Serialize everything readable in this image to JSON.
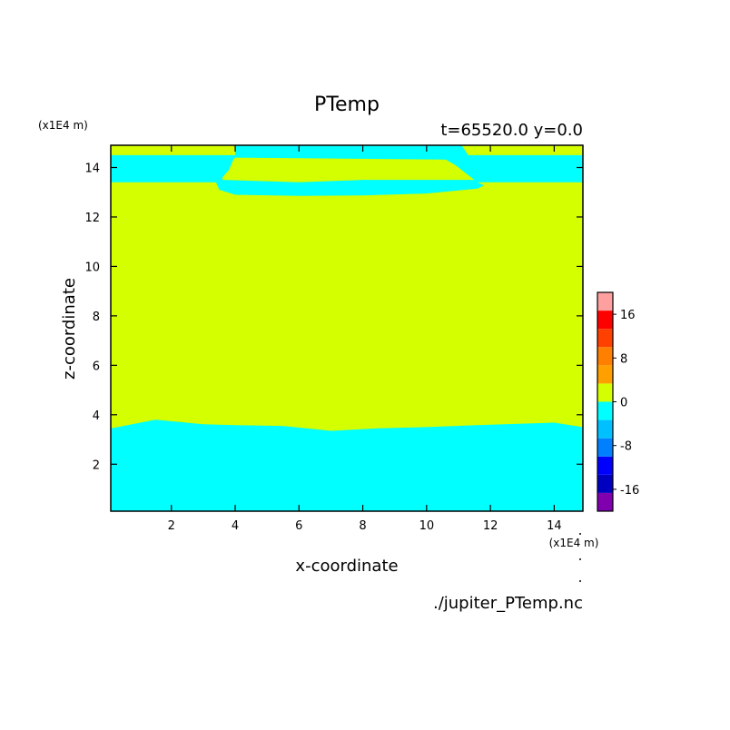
{
  "chart_data": {
    "type": "heatmap",
    "title": "PTemp",
    "subtitle": "t=65520.0 y=0.0",
    "xlabel": "x-coordinate",
    "ylabel": "z-coordinate",
    "x_unit": "(x1E4 m)",
    "y_unit": "(x1E4 m)",
    "source": "./jupiter_PTemp.nc",
    "xlim": [
      0.1,
      14.9
    ],
    "ylim": [
      0.1,
      14.9
    ],
    "xticks": [
      2,
      4,
      6,
      8,
      10,
      12,
      14
    ],
    "yticks": [
      2,
      4,
      6,
      8,
      10,
      12,
      14
    ],
    "background_level_color": "#d4ff00",
    "regions": [
      {
        "color": "#00ffff",
        "range": [
          -4,
          0
        ],
        "points": [
          [
            0.1,
            0.1
          ],
          [
            14.9,
            0.1
          ],
          [
            14.9,
            3.5
          ],
          [
            14,
            3.68
          ],
          [
            12,
            3.6
          ],
          [
            10,
            3.5
          ],
          [
            8.5,
            3.45
          ],
          [
            7,
            3.35
          ],
          [
            5.5,
            3.55
          ],
          [
            4,
            3.58
          ],
          [
            3,
            3.62
          ],
          [
            1.5,
            3.8
          ],
          [
            0.1,
            3.45
          ]
        ]
      },
      {
        "color": "#00ffff",
        "range": [
          -4,
          0
        ],
        "points": [
          [
            0.1,
            13.4
          ],
          [
            3.4,
            13.4
          ],
          [
            3.5,
            13.1
          ],
          [
            4,
            12.9
          ],
          [
            6,
            12.85
          ],
          [
            8,
            12.87
          ],
          [
            10,
            12.95
          ],
          [
            11.6,
            13.15
          ],
          [
            11.8,
            13.28
          ],
          [
            11.6,
            13.4
          ],
          [
            14.9,
            13.4
          ],
          [
            14.9,
            14.5
          ],
          [
            11.3,
            14.5
          ],
          [
            11.1,
            14.9
          ],
          [
            4,
            14.9
          ],
          [
            4,
            14.5
          ],
          [
            0.1,
            14.5
          ]
        ]
      }
    ],
    "regions_above": [
      {
        "color": "#d4ff00",
        "points": [
          [
            3.6,
            13.6
          ],
          [
            3.6,
            13.5
          ],
          [
            6,
            13.4
          ],
          [
            8,
            13.5
          ],
          [
            11.5,
            13.5
          ],
          [
            10.9,
            14.1
          ],
          [
            10.6,
            14.32
          ],
          [
            6,
            14.38
          ],
          [
            4,
            14.4
          ],
          [
            3.95,
            14.35
          ],
          [
            3.8,
            13.9
          ]
        ]
      }
    ],
    "colorbar": {
      "min": -20,
      "max": 20,
      "step": 4,
      "colors": [
        "#8000b0",
        "#0000c0",
        "#0000ff",
        "#0080ff",
        "#00c0ff",
        "#00ffff",
        "#d4ff00",
        "#ffa000",
        "#ff8000",
        "#ff4000",
        "#ff0000",
        "#ffa0a0"
      ],
      "tick_labels": [
        "16",
        "8",
        "0",
        "-8",
        "-16"
      ],
      "tick_values": [
        16,
        8,
        0,
        -8,
        -16
      ]
    }
  }
}
